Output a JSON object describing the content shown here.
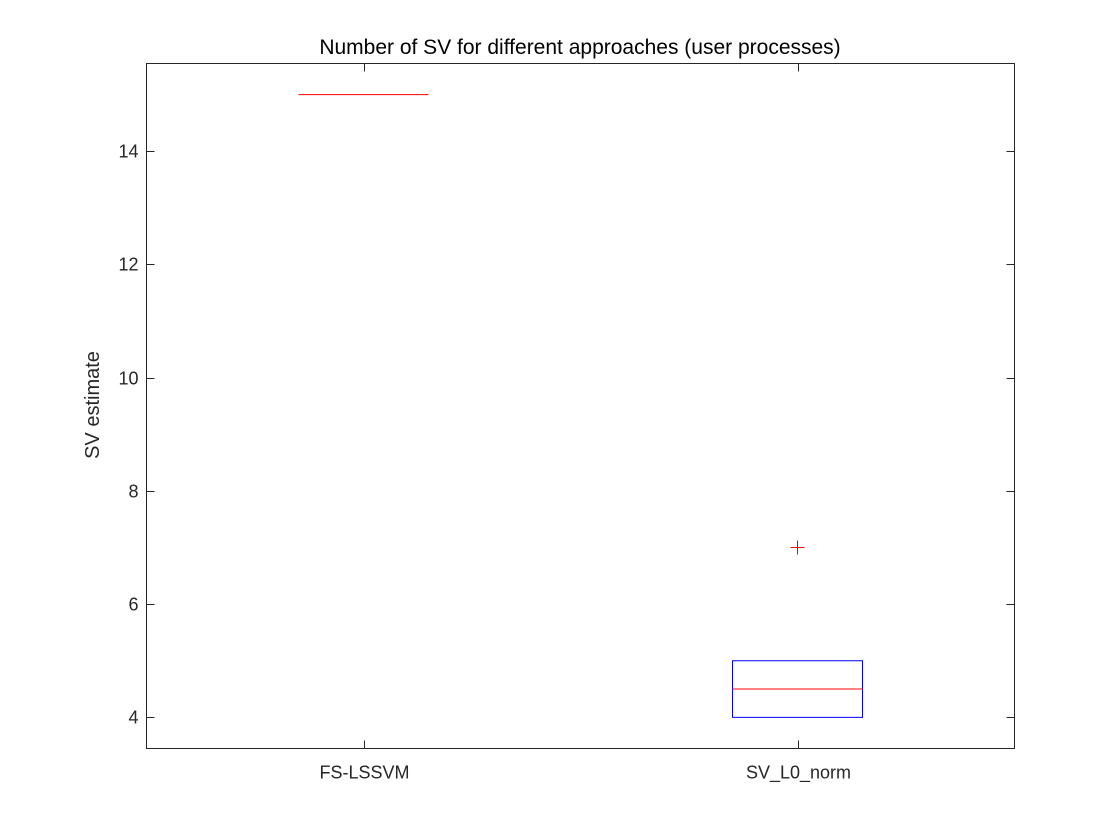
{
  "chart_data": {
    "type": "box",
    "title": "Number of SV for different approaches (user processes)",
    "xlabel": "",
    "ylabel": "SV estimate",
    "ylim": [
      3.45,
      15.55
    ],
    "yticks": [
      4,
      6,
      8,
      10,
      12,
      14
    ],
    "categories": [
      "FS-LSSVM",
      "SV_L0_norm"
    ],
    "boxes": [
      {
        "category": "FS-LSSVM",
        "q1": 15,
        "median": 15,
        "q3": 15,
        "whisker_low": 15,
        "whisker_high": 15,
        "outliers": []
      },
      {
        "category": "SV_L0_norm",
        "q1": 4,
        "median": 4.5,
        "q3": 5,
        "whisker_low": 4,
        "whisker_high": 5,
        "outliers": [
          7
        ]
      }
    ],
    "grid": false,
    "colors": {
      "box": "#0000ff",
      "median": "#ff0000",
      "outlier": "#ff0000",
      "axis": "#262626"
    }
  }
}
